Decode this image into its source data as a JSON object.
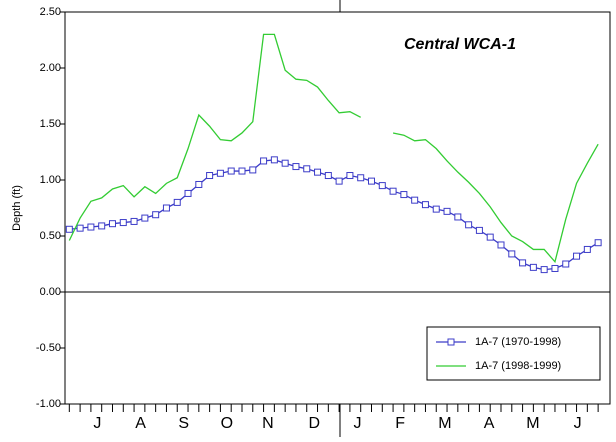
{
  "chart_data": {
    "type": "line",
    "title": "Central WCA-1",
    "y_label": "Depth (ft)",
    "x": [
      0,
      1,
      2,
      3,
      4,
      5,
      6,
      7,
      8,
      9,
      10,
      11,
      12,
      13,
      14,
      15,
      16,
      17,
      18,
      19,
      20,
      21,
      22,
      23,
      24,
      25,
      26,
      27,
      28,
      29,
      30,
      31,
      32,
      33,
      34,
      35,
      36,
      37,
      38,
      39,
      40,
      41,
      42,
      43,
      44,
      45,
      46,
      47,
      48,
      49
    ],
    "xlim": [
      -0.4,
      50.1
    ],
    "xticks": [
      {
        "value": 2.6,
        "label": "J"
      },
      {
        "value": 6.6,
        "label": "A"
      },
      {
        "value": 10.6,
        "label": "S"
      },
      {
        "value": 14.6,
        "label": "O"
      },
      {
        "value": 18.4,
        "label": "N"
      },
      {
        "value": 22.7,
        "label": "D"
      },
      {
        "value": 26.7,
        "label": "J"
      },
      {
        "value": 30.65,
        "label": "F"
      },
      {
        "value": 34.8,
        "label": "M"
      },
      {
        "value": 38.9,
        "label": "A"
      },
      {
        "value": 42.96,
        "label": "M"
      },
      {
        "value": 47.1,
        "label": "J"
      }
    ],
    "ylim": [
      -1,
      2.5
    ],
    "yticks": [
      {
        "value": -1,
        "label": "-1.00"
      },
      {
        "value": -0.5,
        "label": "-0.50"
      },
      {
        "value": 0,
        "label": "0.00"
      },
      {
        "value": 0.5,
        "label": "0.50"
      },
      {
        "value": 1,
        "label": "1.00"
      },
      {
        "value": 1.5,
        "label": "1.50"
      },
      {
        "value": 2,
        "label": "2.00"
      },
      {
        "value": 2.5,
        "label": "2.50"
      }
    ],
    "zero_line": true,
    "legend": "lower-right",
    "series": [
      {
        "name": "1A-7 (1970-1998)",
        "color": "#3c3cc8",
        "marker": "square",
        "values": [
          0.56,
          0.57,
          0.58,
          0.59,
          0.61,
          0.62,
          0.63,
          0.66,
          0.69,
          0.75,
          0.8,
          0.88,
          0.96,
          1.04,
          1.06,
          1.08,
          1.08,
          1.09,
          1.17,
          1.18,
          1.15,
          1.12,
          1.1,
          1.07,
          1.04,
          0.99,
          1.04,
          1.02,
          0.99,
          0.95,
          0.9,
          0.87,
          0.82,
          0.78,
          0.74,
          0.72,
          0.67,
          0.6,
          0.55,
          0.49,
          0.42,
          0.34,
          0.26,
          0.22,
          0.2,
          0.21,
          0.25,
          0.32,
          0.38,
          0.44
        ]
      },
      {
        "name": "1A-7 (1998-1999)",
        "color": "#33cc33",
        "values": [
          0.46,
          0.66,
          0.81,
          0.84,
          0.92,
          0.95,
          0.85,
          0.94,
          0.88,
          0.97,
          1.02,
          1.28,
          1.58,
          1.48,
          1.36,
          1.35,
          1.42,
          1.52,
          2.3,
          2.3,
          1.98,
          1.9,
          1.89,
          1.83,
          1.71,
          1.6,
          1.61,
          1.56,
          null,
          null,
          1.42,
          1.4,
          1.35,
          1.36,
          1.28,
          1.17,
          1.07,
          0.98,
          0.88,
          0.76,
          0.62,
          0.5,
          0.45,
          0.38,
          0.38,
          0.27,
          0.65,
          0.97,
          1.15,
          1.32
        ]
      }
    ]
  }
}
